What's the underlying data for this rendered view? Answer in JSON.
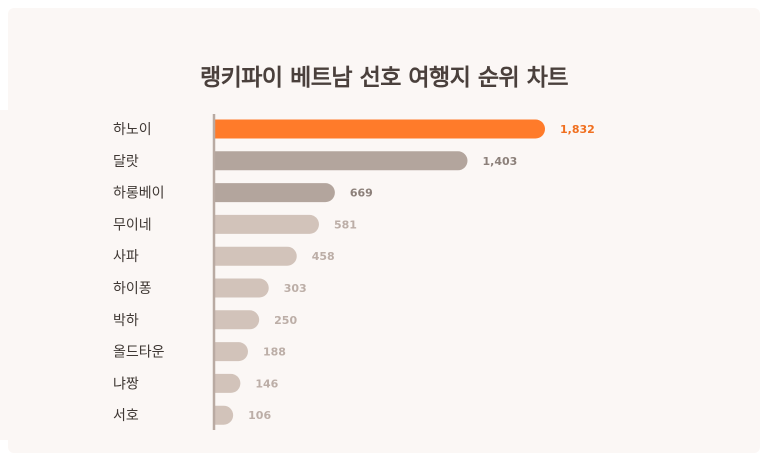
{
  "chart_data": {
    "type": "bar",
    "orientation": "horizontal",
    "title": "랭키파이 베트남 선호 여행지 순위 차트",
    "categories": [
      "하노이",
      "달랏",
      "하롱베이",
      "무이네",
      "사파",
      "하이퐁",
      "박하",
      "올드타운",
      "냐짱",
      "서호"
    ],
    "values": [
      1832,
      1403,
      669,
      581,
      458,
      303,
      250,
      188,
      146,
      106
    ],
    "value_labels": [
      "1,832",
      "1,403",
      "669",
      "581",
      "458",
      "303",
      "250",
      "188",
      "146",
      "106"
    ],
    "xlim": [
      0,
      1832
    ],
    "grid": false,
    "colors": {
      "highlight": "#ff7b2a",
      "mid": "#b3a59d",
      "light": "#d2c3ba",
      "highlight_text": "#f06f1f",
      "mid_text": "#8c807a",
      "light_text": "#bcaea7",
      "axis": "#b9aaa2"
    }
  }
}
